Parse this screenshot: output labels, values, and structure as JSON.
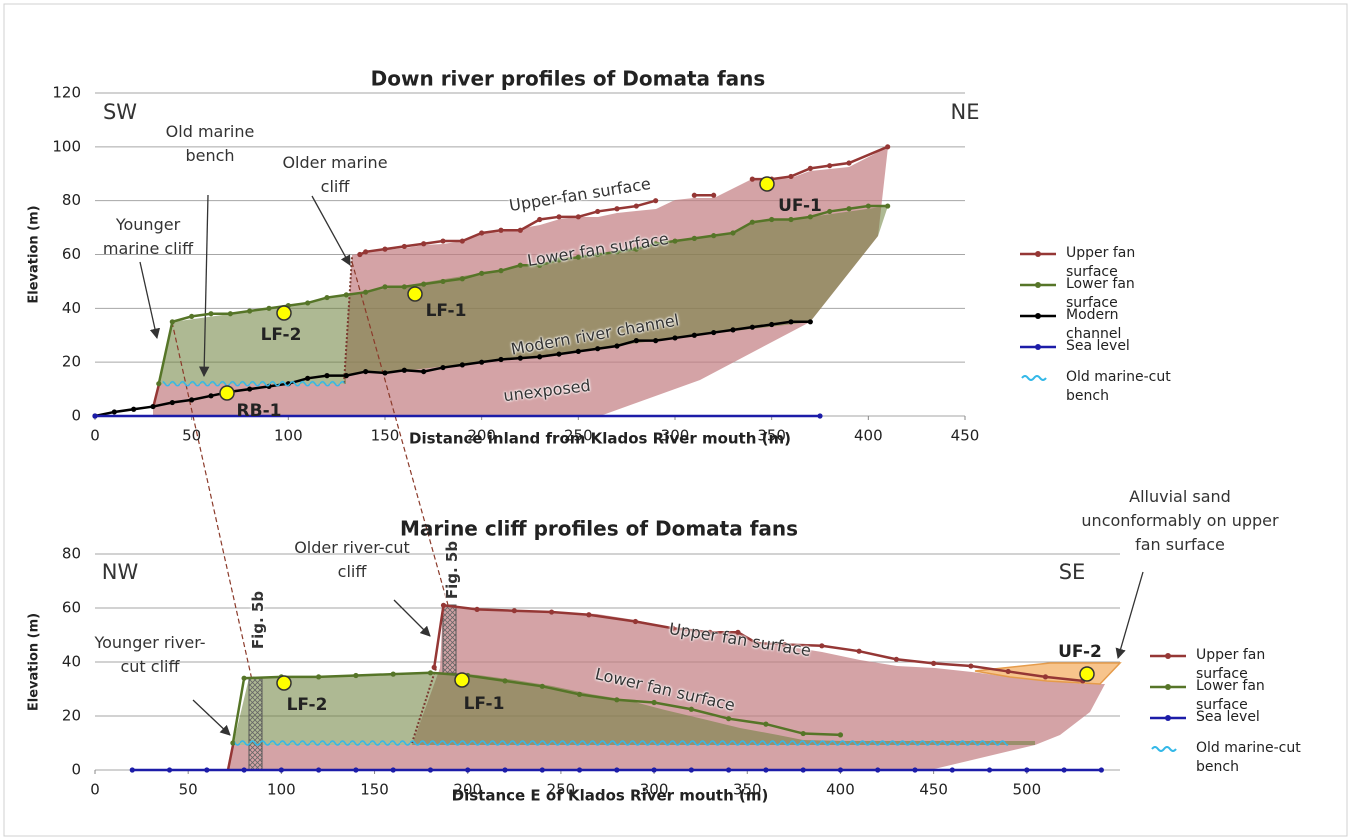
{
  "chart_data": [
    {
      "type": "line",
      "title": "Down river profiles of Domata fans",
      "xlabel": "Distance inland from Klados River mouth (m)",
      "ylabel": "Elevation (m)",
      "xlim": [
        0,
        450
      ],
      "xticks": [
        0,
        50,
        100,
        150,
        200,
        250,
        300,
        350,
        400,
        450
      ],
      "ylim": [
        0,
        120
      ],
      "yticks": [
        0,
        20,
        40,
        60,
        80,
        100,
        120
      ],
      "grid": true,
      "series": [
        {
          "name": "Upper fan surface",
          "color": "#953735",
          "x": [
            137,
            140,
            150,
            160,
            170,
            180,
            190,
            200,
            210,
            220,
            230,
            240,
            250,
            260,
            270,
            280,
            290,
            300,
            310,
            320,
            330,
            340,
            350,
            360,
            370,
            380,
            390,
            410
          ],
          "values": [
            60,
            61,
            62,
            63,
            64,
            65,
            65,
            68,
            69,
            69,
            73,
            74,
            74,
            76,
            77,
            78,
            80,
            null,
            82,
            82,
            null,
            88,
            88,
            89,
            92,
            93,
            94,
            100
          ]
        },
        {
          "name": "Lower fan surface",
          "color": "#567528",
          "x": [
            33,
            40,
            50,
            60,
            70,
            80,
            90,
            100,
            110,
            120,
            130,
            140,
            150,
            160,
            170,
            180,
            190,
            200,
            210,
            220,
            230,
            240,
            250,
            260,
            270,
            280,
            290,
            300,
            310,
            320,
            330,
            340,
            350,
            360,
            370,
            380,
            390,
            400,
            410
          ],
          "values": [
            12,
            35,
            37,
            38,
            38,
            39,
            40,
            41,
            42,
            44,
            45,
            46,
            48,
            48,
            49,
            50,
            51,
            53,
            54,
            56,
            56,
            58,
            59,
            60,
            61,
            62,
            64,
            65,
            66,
            67,
            68,
            72,
            73,
            73,
            74,
            76,
            77,
            78,
            78
          ]
        },
        {
          "name": "Modern channel",
          "color": "#000000",
          "x": [
            0,
            10,
            20,
            30,
            40,
            50,
            60,
            70,
            80,
            90,
            100,
            110,
            120,
            130,
            140,
            150,
            160,
            170,
            180,
            190,
            200,
            210,
            220,
            230,
            240,
            250,
            260,
            270,
            280,
            290,
            300,
            310,
            320,
            330,
            340,
            350,
            360,
            370
          ],
          "values": [
            0,
            1.5,
            2.5,
            3.5,
            5,
            6,
            7.5,
            9,
            10,
            11,
            12,
            14,
            15,
            15,
            16.5,
            16,
            17,
            16.5,
            18,
            19,
            20,
            21,
            21.5,
            22,
            23,
            24,
            25,
            26,
            28,
            28,
            29,
            30,
            31,
            32,
            33,
            34,
            35,
            35
          ]
        },
        {
          "name": "Sea level",
          "color": "#1c1ca8",
          "x": [
            0,
            375
          ],
          "values": [
            0,
            0
          ]
        },
        {
          "name": "Old marine-cut bench",
          "color": "#33b8e8",
          "style": "wavy",
          "x": [
            35,
            129
          ],
          "values": [
            12,
            12
          ]
        }
      ],
      "annotations": [
        "SW",
        "NE",
        "Old marine bench",
        "Older marine cliff",
        "Younger marine cliff",
        "Upper-fan surface",
        "Lower fan surface",
        "Modern river channel",
        "unexposed"
      ],
      "sites": [
        "UF-1",
        "LF-2",
        "LF-1",
        "RB-1"
      ]
    },
    {
      "type": "line",
      "title": "Marine cliff profiles of Domata fans",
      "xlabel": "Distance E of Klados River mouth (m)",
      "ylabel": "Elevation (m)",
      "xlim": [
        0,
        550
      ],
      "xticks": [
        0,
        50,
        100,
        150,
        200,
        250,
        300,
        350,
        400,
        450,
        500
      ],
      "ylim": [
        0,
        80
      ],
      "yticks": [
        0,
        20,
        40,
        60,
        80
      ],
      "grid": true,
      "series": [
        {
          "name": "Upper fan surface",
          "color": "#953735",
          "x": [
            182,
            187,
            205,
            225,
            245,
            265,
            290,
            310,
            330,
            345,
            355,
            370,
            390,
            410,
            430,
            450,
            470,
            490,
            510,
            530
          ],
          "values": [
            38,
            61,
            59.5,
            59,
            58.5,
            57.5,
            55,
            52.5,
            51,
            51,
            47,
            46.5,
            46,
            44,
            41,
            39.5,
            38.5,
            36.5,
            34.5,
            33
          ]
        },
        {
          "name": "Lower fan surface",
          "color": "#567528",
          "x": [
            74,
            80,
            100,
            120,
            140,
            160,
            180,
            200,
            220,
            240,
            260,
            280,
            300,
            320,
            340,
            360,
            380,
            400
          ],
          "values": [
            10,
            34,
            34.5,
            34.5,
            35,
            35.5,
            36,
            35,
            33,
            31,
            28,
            26,
            25,
            22.5,
            19,
            17,
            13.5,
            13
          ]
        },
        {
          "name": "Sea level",
          "color": "#1c1ca8",
          "x": [
            20,
            40,
            60,
            80,
            100,
            120,
            140,
            160,
            180,
            200,
            220,
            240,
            260,
            280,
            300,
            320,
            340,
            360,
            380,
            400,
            420,
            440,
            460,
            480,
            500,
            520,
            540
          ],
          "values": [
            0,
            0,
            0,
            0,
            0,
            0,
            0,
            0,
            0,
            0,
            0,
            0,
            0,
            0,
            0,
            0,
            0,
            0,
            0,
            0,
            0,
            0,
            0,
            0,
            0,
            0,
            0
          ]
        },
        {
          "name": "Old marine-cut bench",
          "color": "#33b8e8",
          "style": "wavy",
          "x": [
            75,
            490
          ],
          "values": [
            10,
            10
          ]
        }
      ],
      "annotations": [
        "NW",
        "SE",
        "Older river-cut cliff",
        "Younger river-cut cliff",
        "Upper fan surface",
        "Lower fan surface",
        "Alluvial sand unconformably on upper fan surface",
        "Fig. 5b",
        "Fig. 5b"
      ],
      "sites": [
        "UF-2",
        "LF-2",
        "LF-1"
      ]
    }
  ]
}
